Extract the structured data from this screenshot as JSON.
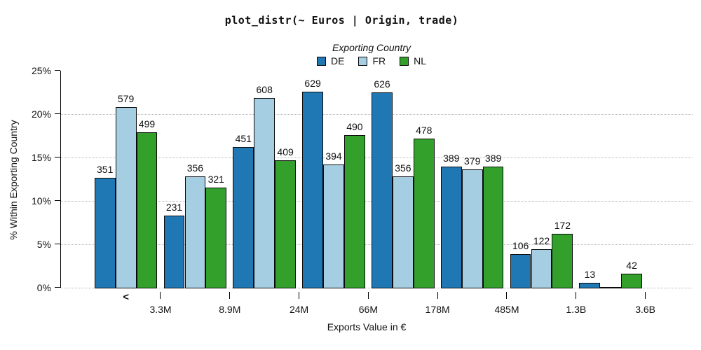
{
  "title": "plot_distr(~ Euros | Origin, trade)",
  "legend": {
    "title": "Exporting Country",
    "items": [
      {
        "label": "DE",
        "color": "#1f78b4"
      },
      {
        "label": "FR",
        "color": "#a6cee3"
      },
      {
        "label": "NL",
        "color": "#33a02c"
      }
    ]
  },
  "axes": {
    "x_label": "Exports Value in €",
    "y_label": "% Within Exporting Country",
    "y_ticks": [
      {
        "label": "0%",
        "value": 0
      },
      {
        "label": "5%",
        "value": 5
      },
      {
        "label": "10%",
        "value": 10
      },
      {
        "label": "15%",
        "value": 15
      },
      {
        "label": "20%",
        "value": 20
      },
      {
        "label": "25%",
        "value": 25
      }
    ],
    "x_boundary_tick_labels": [
      "3.3M",
      "8.9M",
      "24M",
      "66M",
      "178M",
      "485M",
      "1.3B",
      "3.6B"
    ],
    "first_bin_marker": "<"
  },
  "chart_data": {
    "type": "bar",
    "title": "plot_distr(~ Euros | Origin, trade)",
    "xlabel": "Exports Value in €",
    "ylabel": "% Within Exporting Country",
    "ylim": [
      0,
      25
    ],
    "y_unit": "percent",
    "grid": "horizontal-dotted-at-0-5-10-15-20",
    "legend_position": "top-center",
    "legend_title": "Exporting Country",
    "bin_labels": [
      "< 3.3M",
      "3.3M-8.9M",
      "8.9M-24M",
      "24M-66M",
      "66M-178M",
      "178M-485M",
      "485M-1.3B",
      "1.3B-3.6B"
    ],
    "boundary_tick_labels": [
      "3.3M",
      "8.9M",
      "24M",
      "66M",
      "178M",
      "485M",
      "1.3B",
      "3.6B"
    ],
    "series": [
      {
        "name": "DE",
        "color": "#1f78b4",
        "counts": [
          351,
          231,
          451,
          629,
          626,
          389,
          106,
          13
        ],
        "percents": [
          12.55,
          8.26,
          16.13,
          22.5,
          22.39,
          13.91,
          3.79,
          0.46
        ]
      },
      {
        "name": "FR",
        "color": "#a6cee3",
        "counts": [
          579,
          356,
          608,
          394,
          356,
          379,
          122,
          0
        ],
        "percents": [
          20.72,
          12.74,
          21.76,
          14.1,
          12.74,
          13.56,
          4.37,
          0.0
        ]
      },
      {
        "name": "NL",
        "color": "#33a02c",
        "counts": [
          499,
          321,
          409,
          490,
          478,
          389,
          172,
          42
        ],
        "percents": [
          17.82,
          11.46,
          14.61,
          17.5,
          17.07,
          13.89,
          6.14,
          1.5
        ]
      }
    ]
  }
}
